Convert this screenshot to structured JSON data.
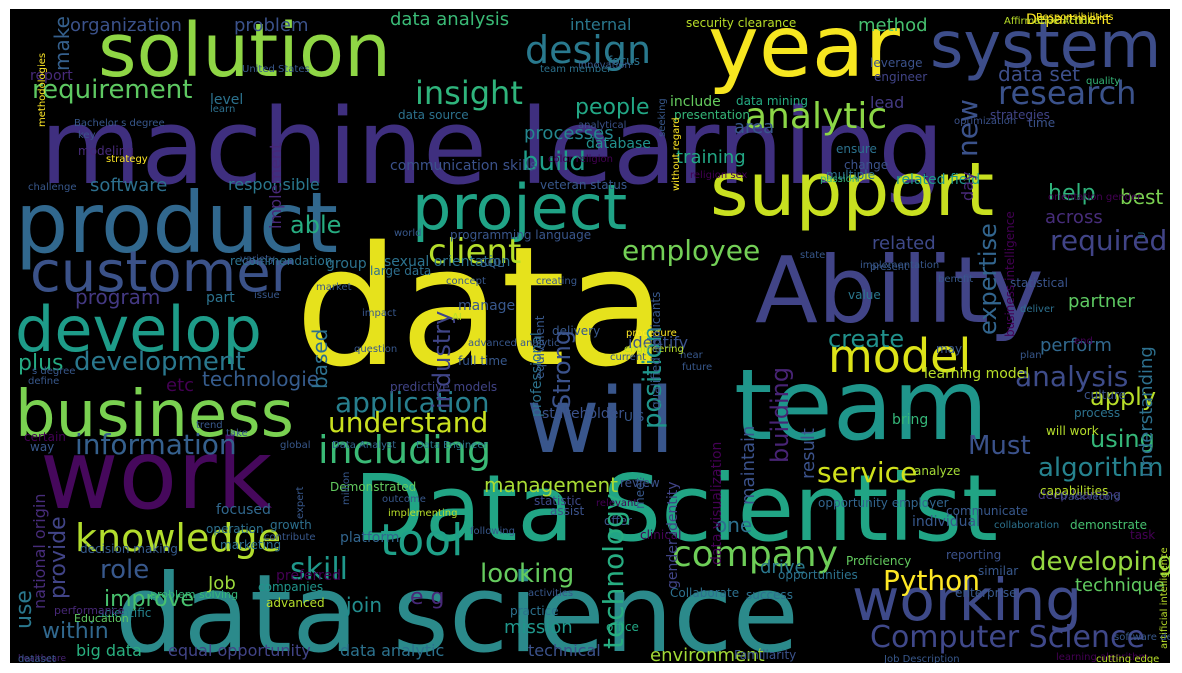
{
  "canvas": {
    "background": "#000000",
    "page_background": "#ffffff"
  },
  "words": [
    {
      "text": "data",
      "color": "#e6e21c"
    },
    {
      "text": "machine learning",
      "color": "#3f2f7f"
    },
    {
      "text": "Data Scientist",
      "color": "#21a585"
    },
    {
      "text": "data science",
      "color": "#2b8a8b"
    },
    {
      "text": "solution",
      "color": "#8fd645"
    },
    {
      "text": "year",
      "color": "#f6e620"
    },
    {
      "text": "system",
      "color": "#3d4d8a"
    },
    {
      "text": "product",
      "color": "#31688e"
    },
    {
      "text": "support",
      "color": "#c8e020"
    },
    {
      "text": "project",
      "color": "#20a386"
    },
    {
      "text": "Ability",
      "color": "#414487"
    },
    {
      "text": "customer",
      "color": "#3b5289"
    },
    {
      "text": "develop",
      "color": "#1e9c89"
    },
    {
      "text": "business",
      "color": "#7ad151"
    },
    {
      "text": "work",
      "color": "#46085c"
    },
    {
      "text": "will",
      "color": "#39568c"
    },
    {
      "text": "team",
      "color": "#1f968b"
    },
    {
      "text": "model",
      "color": "#dde318"
    },
    {
      "text": "working",
      "color": "#3e4a89"
    },
    {
      "text": "analytic",
      "color": "#8bd646"
    },
    {
      "text": "design",
      "color": "#29798e"
    },
    {
      "text": "research",
      "color": "#3b528b"
    },
    {
      "text": "requirement",
      "color": "#5ec962"
    },
    {
      "text": "insight",
      "color": "#2fb47c"
    },
    {
      "text": "data set",
      "color": "#3d4e8a"
    },
    {
      "text": "knowledge",
      "color": "#b2dd2d"
    },
    {
      "text": "company",
      "color": "#6ece58"
    },
    {
      "text": "including",
      "color": "#3aba76"
    },
    {
      "text": "information",
      "color": "#35608d"
    },
    {
      "text": "tool",
      "color": "#1fa088"
    },
    {
      "text": "employee",
      "color": "#73d056"
    },
    {
      "text": "client",
      "color": "#b5de2b"
    },
    {
      "text": "Computer Science",
      "color": "#3f4889"
    },
    {
      "text": "Python",
      "color": "#fde725"
    },
    {
      "text": "service",
      "color": "#d0e11c"
    },
    {
      "text": "algorithm",
      "color": "#26828e"
    },
    {
      "text": "application",
      "color": "#277f8e"
    },
    {
      "text": "analysis",
      "color": "#3e4c8a"
    },
    {
      "text": "development",
      "color": "#2a788e"
    },
    {
      "text": "understand",
      "color": "#cae11f"
    },
    {
      "text": "management",
      "color": "#a8db34"
    },
    {
      "text": "skill",
      "color": "#1f988b"
    },
    {
      "text": "role",
      "color": "#38588c"
    },
    {
      "text": "looking",
      "color": "#65cb5e"
    },
    {
      "text": "developing",
      "color": "#95d840"
    },
    {
      "text": "technique",
      "color": "#60ca60"
    },
    {
      "text": "build",
      "color": "#1f9e89"
    },
    {
      "text": "people",
      "color": "#22a785"
    },
    {
      "text": "software",
      "color": "#2d708e"
    },
    {
      "text": "program",
      "color": "#443983"
    },
    {
      "text": "able",
      "color": "#27ad81"
    },
    {
      "text": "technologie",
      "color": "#365c8d"
    },
    {
      "text": "across",
      "color": "#472d7b"
    },
    {
      "text": "required",
      "color": "#414487"
    },
    {
      "text": "help",
      "color": "#2fb47c"
    },
    {
      "text": "related",
      "color": "#3e4989"
    },
    {
      "text": "partner",
      "color": "#5ec962"
    },
    {
      "text": "perform",
      "color": "#31688e"
    },
    {
      "text": "apply",
      "color": "#b8de29"
    },
    {
      "text": "using",
      "color": "#35b779"
    },
    {
      "text": "create",
      "color": "#21918c"
    },
    {
      "text": "Must",
      "color": "#3b528b"
    },
    {
      "text": "etc",
      "color": "#440154"
    },
    {
      "text": "plus",
      "color": "#25ab82"
    },
    {
      "text": "improve",
      "color": "#48c16e"
    },
    {
      "text": "Job",
      "color": "#9bd93c"
    },
    {
      "text": "within",
      "color": "#31688e"
    },
    {
      "text": "big data",
      "color": "#29af7f"
    },
    {
      "text": "equal opportunity",
      "color": "#414487"
    },
    {
      "text": "data analytic",
      "color": "#2c728e"
    },
    {
      "text": "technical",
      "color": "#3b528b"
    },
    {
      "text": "environment",
      "color": "#a2da37"
    },
    {
      "text": "join",
      "color": "#228c8d"
    },
    {
      "text": "mission",
      "color": "#1f968b"
    },
    {
      "text": "drive",
      "color": "#2a788e"
    },
    {
      "text": "one",
      "color": "#2d708e"
    },
    {
      "text": "e g",
      "color": "#482878"
    },
    {
      "text": "organization",
      "color": "#3b528b"
    },
    {
      "text": "problem",
      "color": "#3b528b"
    },
    {
      "text": "data analysis",
      "color": "#3aba76"
    },
    {
      "text": "internal",
      "color": "#2a788e"
    },
    {
      "text": "method",
      "color": "#46c06f"
    },
    {
      "text": "Responsibilities",
      "color": "#f4e61e"
    },
    {
      "text": "report",
      "color": "#472a7a"
    },
    {
      "text": "level",
      "color": "#2c728e"
    },
    {
      "text": "processes",
      "color": "#24868e"
    },
    {
      "text": "include",
      "color": "#65cb5e"
    },
    {
      "text": "data mining",
      "color": "#25ab82"
    },
    {
      "text": "lead",
      "color": "#443a83"
    },
    {
      "text": "area",
      "color": "#38588c"
    },
    {
      "text": "responsible",
      "color": "#2a788e"
    },
    {
      "text": "communication skills",
      "color": "#3b528b"
    },
    {
      "text": "veteran status",
      "color": "#38588c"
    },
    {
      "text": "training",
      "color": "#22a785"
    },
    {
      "text": "related field",
      "color": "#1f978b"
    },
    {
      "text": "group",
      "color": "#2c728e"
    },
    {
      "text": "sexual orientation",
      "color": "#2c728e"
    },
    {
      "text": "SQL",
      "color": "#355f8d"
    },
    {
      "text": "part",
      "color": "#2c728e"
    },
    {
      "text": "best",
      "color": "#7ad151"
    },
    {
      "text": "statistical",
      "color": "#3a548c"
    },
    {
      "text": "value",
      "color": "#2a788e"
    },
    {
      "text": "stakeholder",
      "color": "#3b528b"
    },
    {
      "text": "deep learning",
      "color": "#443983"
    },
    {
      "text": "opportunity employer",
      "color": "#32658e"
    },
    {
      "text": "task",
      "color": "#440154"
    },
    {
      "text": "certain",
      "color": "#440154"
    },
    {
      "text": "Data Analyst",
      "color": "#32658e"
    },
    {
      "text": "Data Engineer",
      "color": "#2a788e"
    },
    {
      "text": "large data",
      "color": "#2e6f8e"
    },
    {
      "text": "recommendation",
      "color": "#2c728e"
    },
    {
      "text": "programming language",
      "color": "#39568c"
    },
    {
      "text": "Demonstrated",
      "color": "#63cb5f"
    },
    {
      "text": "clinical",
      "color": "#440154"
    },
    {
      "text": "focused",
      "color": "#31688e"
    },
    {
      "text": "growth",
      "color": "#2d708e"
    },
    {
      "text": "platform",
      "color": "#32658e"
    },
    {
      "text": "operation",
      "color": "#2d708e"
    },
    {
      "text": "marketing",
      "color": "#2d708e"
    },
    {
      "text": "decision making",
      "color": "#365c8d"
    },
    {
      "text": "problem solving",
      "color": "#35b779"
    },
    {
      "text": "scientific",
      "color": "#25848e"
    },
    {
      "text": "performance",
      "color": "#482878"
    },
    {
      "text": "Education",
      "color": "#5ec962"
    },
    {
      "text": "healthcare",
      "color": "#482475"
    },
    {
      "text": "advanced",
      "color": "#b5de2b"
    },
    {
      "text": "preferred",
      "color": "#440154"
    },
    {
      "text": "companies",
      "color": "#1f958b"
    },
    {
      "text": "office",
      "color": "#22a785"
    },
    {
      "text": "practice",
      "color": "#2c728e"
    },
    {
      "text": "offer",
      "color": "#3b528b"
    },
    {
      "text": "Familiarity",
      "color": "#3b528b"
    },
    {
      "text": "collaboration",
      "color": "#2c728e"
    },
    {
      "text": "individual",
      "color": "#38588c"
    },
    {
      "text": "capabilities",
      "color": "#b8de29"
    },
    {
      "text": "analyze",
      "color": "#a5db36"
    },
    {
      "text": "reporting",
      "color": "#3b528b"
    },
    {
      "text": "Proficiency",
      "color": "#63cb5f"
    },
    {
      "text": "statistic",
      "color": "#3e4989"
    },
    {
      "text": "assist",
      "color": "#3b528b"
    },
    {
      "text": "review",
      "color": "#3b528b"
    },
    {
      "text": "communicate",
      "color": "#38588c"
    },
    {
      "text": "track record",
      "color": "#3b528b"
    },
    {
      "text": "demonstrate",
      "color": "#46c06f"
    },
    {
      "text": "enterprise",
      "color": "#38588c"
    },
    {
      "text": "similar",
      "color": "#38588c"
    },
    {
      "text": "success",
      "color": "#2d708e"
    },
    {
      "text": "opportunities",
      "color": "#2c728e"
    },
    {
      "text": "Collaborate",
      "color": "#2d708e"
    },
    {
      "text": "culture",
      "color": "#3b528b"
    },
    {
      "text": "process",
      "color": "#2c728e"
    },
    {
      "text": "bring",
      "color": "#35b779"
    },
    {
      "text": "will work",
      "color": "#b5de2b"
    },
    {
      "text": "new",
      "color": "#3b528b"
    },
    {
      "text": "industry",
      "color": "#404588"
    },
    {
      "text": "Strong",
      "color": "#3b528b"
    },
    {
      "text": "professional",
      "color": "#2c728e"
    },
    {
      "text": "position",
      "color": "#1f958b"
    },
    {
      "text": "building",
      "color": "#482475"
    },
    {
      "text": "based",
      "color": "#2d708e"
    },
    {
      "text": "technology",
      "color": "#27ad81"
    },
    {
      "text": "data visualization",
      "color": "#440154"
    },
    {
      "text": "gender identity",
      "color": "#414487"
    },
    {
      "text": "result",
      "color": "#3b528b"
    },
    {
      "text": "maintain",
      "color": "#3b528b"
    },
    {
      "text": "expertise",
      "color": "#32658e"
    },
    {
      "text": "business intelligence",
      "color": "#440154"
    },
    {
      "text": "understanding",
      "color": "#2d708e"
    },
    {
      "text": "national origin",
      "color": "#472c7a"
    },
    {
      "text": "provide",
      "color": "#414487"
    },
    {
      "text": "use",
      "color": "#2a788e"
    },
    {
      "text": "make",
      "color": "#35608d"
    },
    {
      "text": "implement",
      "color": "#482878"
    },
    {
      "text": "day",
      "color": "#482878"
    },
    {
      "text": "identify",
      "color": "#3b528b"
    },
    {
      "text": "optimization",
      "color": "#3b528b"
    },
    {
      "text": "ensure",
      "color": "#2c728e"
    },
    {
      "text": "change",
      "color": "#3b528b"
    },
    {
      "text": "multiple",
      "color": "#2d708e"
    },
    {
      "text": "time",
      "color": "#3b528b"
    },
    {
      "text": "key",
      "color": "#3b528b"
    },
    {
      "text": "modeling",
      "color": "#472a7a"
    },
    {
      "text": "strategy",
      "color": "#fde725"
    },
    {
      "text": "learn",
      "color": "#2d708e"
    },
    {
      "text": "database",
      "color": "#21918c"
    },
    {
      "text": "focus",
      "color": "#2c728e"
    },
    {
      "text": "innovation",
      "color": "#38588c"
    },
    {
      "text": "presentation",
      "color": "#35b779"
    },
    {
      "text": "analytical",
      "color": "#3b528b"
    },
    {
      "text": "data source",
      "color": "#2c728e"
    },
    {
      "text": "team member",
      "color": "#2c728e"
    },
    {
      "text": "quality",
      "color": "#35b779"
    },
    {
      "text": "Department",
      "color": "#fde725"
    },
    {
      "text": "leverage",
      "color": "#3b528b"
    },
    {
      "text": "engineer",
      "color": "#414487"
    },
    {
      "text": "strategies",
      "color": "#414487"
    },
    {
      "text": "passion",
      "color": "#35b779"
    },
    {
      "text": "learning model",
      "color": "#b8de29"
    },
    {
      "text": "deliver",
      "color": "#2d708e"
    },
    {
      "text": "benefit",
      "color": "#38588c"
    },
    {
      "text": "may",
      "color": "#38588c"
    },
    {
      "text": "state",
      "color": "#38588c"
    },
    {
      "text": "present",
      "color": "#38588c"
    },
    {
      "text": "variety",
      "color": "#38588c"
    },
    {
      "text": "end",
      "color": "#440154"
    },
    {
      "text": "U",
      "color": "#2c728e"
    },
    {
      "text": "United States",
      "color": "#38588c"
    },
    {
      "text": "predictive models",
      "color": "#414487"
    },
    {
      "text": "U S",
      "color": "#38588c"
    },
    {
      "text": "world",
      "color": "#38588c"
    },
    {
      "text": "future",
      "color": "#38588c"
    },
    {
      "text": "market",
      "color": "#38588c"
    },
    {
      "text": "manage",
      "color": "#38588c"
    },
    {
      "text": "trend",
      "color": "#38588c"
    },
    {
      "text": "take",
      "color": "#38588c"
    },
    {
      "text": "relevant",
      "color": "#440154"
    },
    {
      "text": "global",
      "color": "#38588c"
    },
    {
      "text": "way",
      "color": "#38588c"
    },
    {
      "text": "define",
      "color": "#38588c"
    },
    {
      "text": "s degree",
      "color": "#38588c"
    },
    {
      "text": "challenge",
      "color": "#38588c"
    },
    {
      "text": "issue",
      "color": "#38588c"
    },
    {
      "text": "impact",
      "color": "#38588c"
    },
    {
      "text": "contribute",
      "color": "#38588c"
    },
    {
      "text": "following",
      "color": "#38588c"
    },
    {
      "text": "million",
      "color": "#38588c"
    },
    {
      "text": "implementing",
      "color": "#b8de29"
    },
    {
      "text": "outcome",
      "color": "#38588c"
    },
    {
      "text": "current",
      "color": "#38588c"
    },
    {
      "text": "near",
      "color": "#38588c"
    },
    {
      "text": "plan",
      "color": "#38588c"
    },
    {
      "text": "question",
      "color": "#38588c"
    },
    {
      "text": "procedure",
      "color": "#fde725"
    },
    {
      "text": "advanced analytic",
      "color": "#38588c"
    },
    {
      "text": "engineering",
      "color": "#b8de29"
    },
    {
      "text": "AI",
      "color": "#b8de29"
    },
    {
      "text": "full time",
      "color": "#38588c"
    },
    {
      "text": "delivery",
      "color": "#38588c"
    },
    {
      "text": "equivalent",
      "color": "#38588c"
    },
    {
      "text": "expert",
      "color": "#38588c"
    },
    {
      "text": "meet",
      "color": "#38588c"
    },
    {
      "text": "qualified applicants",
      "color": "#38588c"
    },
    {
      "text": "concept",
      "color": "#38588c"
    },
    {
      "text": "creating",
      "color": "#38588c"
    },
    {
      "text": "implementation",
      "color": "#38588c"
    },
    {
      "text": "source",
      "color": "#38588c"
    },
    {
      "text": "activities",
      "color": "#38588c"
    },
    {
      "text": "methodologies",
      "color": "#fde725"
    },
    {
      "text": "Bachelor s degree",
      "color": "#38588c"
    },
    {
      "text": "color religion",
      "color": "#440154"
    },
    {
      "text": "religion sex",
      "color": "#440154"
    },
    {
      "text": "orientation gender",
      "color": "#440154"
    },
    {
      "text": "artificial intelligence",
      "color": "#b8de29"
    },
    {
      "text": "learning algorithm",
      "color": "#440154"
    },
    {
      "text": "cutting edge",
      "color": "#b8de29"
    },
    {
      "text": "Job Description",
      "color": "#38588c"
    },
    {
      "text": "dataset",
      "color": "#38588c"
    },
    {
      "text": "software development",
      "color": "#38588c"
    },
    {
      "text": "security clearance",
      "color": "#b8de29"
    },
    {
      "text": "Affirmative Action",
      "color": "#b8de29"
    },
    {
      "text": "seeking",
      "color": "#38588c"
    },
    {
      "text": "without regard",
      "color": "#fde725"
    },
    {
      "text": "data driven",
      "color": "#38588c"
    },
    {
      "text": "real world",
      "color": "#b8de29"
    },
    {
      "text": "statistical analysis",
      "color": "#440154"
    }
  ]
}
